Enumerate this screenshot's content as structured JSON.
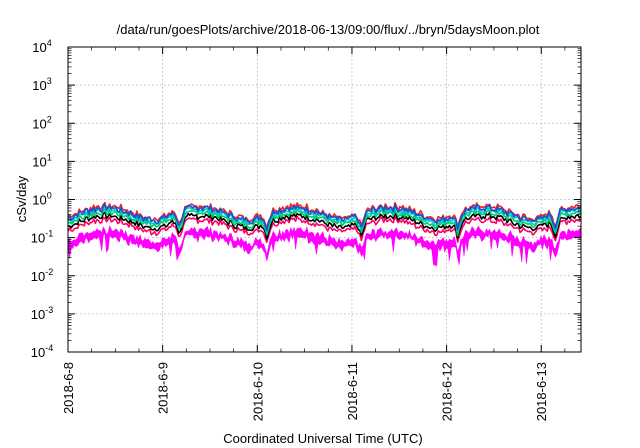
{
  "chart_data": {
    "type": "line",
    "title": "/data/run/goesPlots/archive/2018-06-13/09:00/flux/../bryn/5daysMoon.plot",
    "xlabel": "Coordinated Universal Time (UTC)",
    "ylabel": "cSv/day",
    "yscale": "log",
    "ylim_exp": [
      -4,
      4
    ],
    "y_ticks": [
      {
        "base": "10",
        "exp": "-4"
      },
      {
        "base": "10",
        "exp": "-3"
      },
      {
        "base": "10",
        "exp": "-2"
      },
      {
        "base": "10",
        "exp": "-1"
      },
      {
        "base": "10",
        "exp": "0"
      },
      {
        "base": "10",
        "exp": "1"
      },
      {
        "base": "10",
        "exp": "2"
      },
      {
        "base": "10",
        "exp": "3"
      },
      {
        "base": "10",
        "exp": "4"
      }
    ],
    "x_range_days": [
      0,
      5.42
    ],
    "x_ticks": [
      {
        "label": "2018-6-8",
        "day": 0
      },
      {
        "label": "2018-6-9",
        "day": 1
      },
      {
        "label": "2018-6-10",
        "day": 2
      },
      {
        "label": "2018-6-11",
        "day": 3
      },
      {
        "label": "2018-6-12",
        "day": 4
      },
      {
        "label": "2018-6-13",
        "day": 5
      }
    ],
    "grid": true,
    "dips": [
      1.18,
      2.1,
      3.1,
      4.12,
      5.15
    ],
    "series": [
      {
        "color": "#ff00ff",
        "base": 0.12,
        "spread": 0.5,
        "fill": true
      },
      {
        "color": "#ff0066",
        "base": 0.22,
        "spread": 0.25
      },
      {
        "color": "#000000",
        "base": 0.28,
        "spread": 0.2
      },
      {
        "color": "#00cc66",
        "base": 0.34,
        "spread": 0.2
      },
      {
        "color": "#00cccc",
        "base": 0.4,
        "spread": 0.2
      },
      {
        "color": "#ee2222",
        "base": 0.5,
        "spread": 0.25
      },
      {
        "color": "#1155dd",
        "base": 0.45,
        "spread": 0.25
      }
    ]
  }
}
